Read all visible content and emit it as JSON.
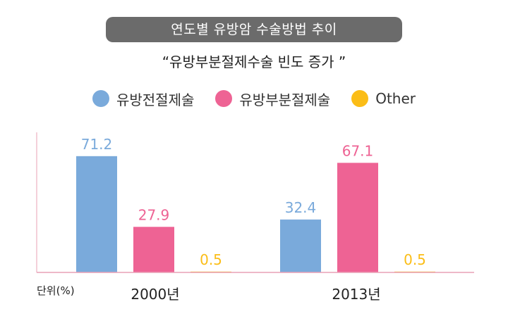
{
  "header": {
    "title": "연도별 유방암 수술방법 추이",
    "subtitle": "“유방부분절제수술 빈도 증가 ”"
  },
  "colors": {
    "title_bg": "#6b6b6b",
    "axis": "#e8a0b6"
  },
  "legend": [
    {
      "label": "유방전절제술",
      "color": "#7aaadb"
    },
    {
      "label": "유방부분절제술",
      "color": "#ee6394"
    },
    {
      "label": "Other",
      "color": "#fbbd17"
    }
  ],
  "chart_data": {
    "type": "bar",
    "categories": [
      "2000년",
      "2013년"
    ],
    "series": [
      {
        "name": "유방전절제술",
        "values": [
          71.2,
          32.4
        ],
        "labels": [
          "71.2",
          "32.4"
        ],
        "color": "#7aaadb"
      },
      {
        "name": "유방부분절제술",
        "values": [
          27.9,
          67.1
        ],
        "labels": [
          "27.9",
          "67.1"
        ],
        "color": "#ee6394"
      },
      {
        "name": "Other",
        "values": [
          0.5,
          0.5
        ],
        "labels": [
          "0.5",
          "0.5"
        ],
        "color": "#fbbd17"
      }
    ],
    "unit_label": "단위(%)",
    "ylim": [
      0,
      80
    ],
    "grid": false,
    "legend_position": "top"
  }
}
